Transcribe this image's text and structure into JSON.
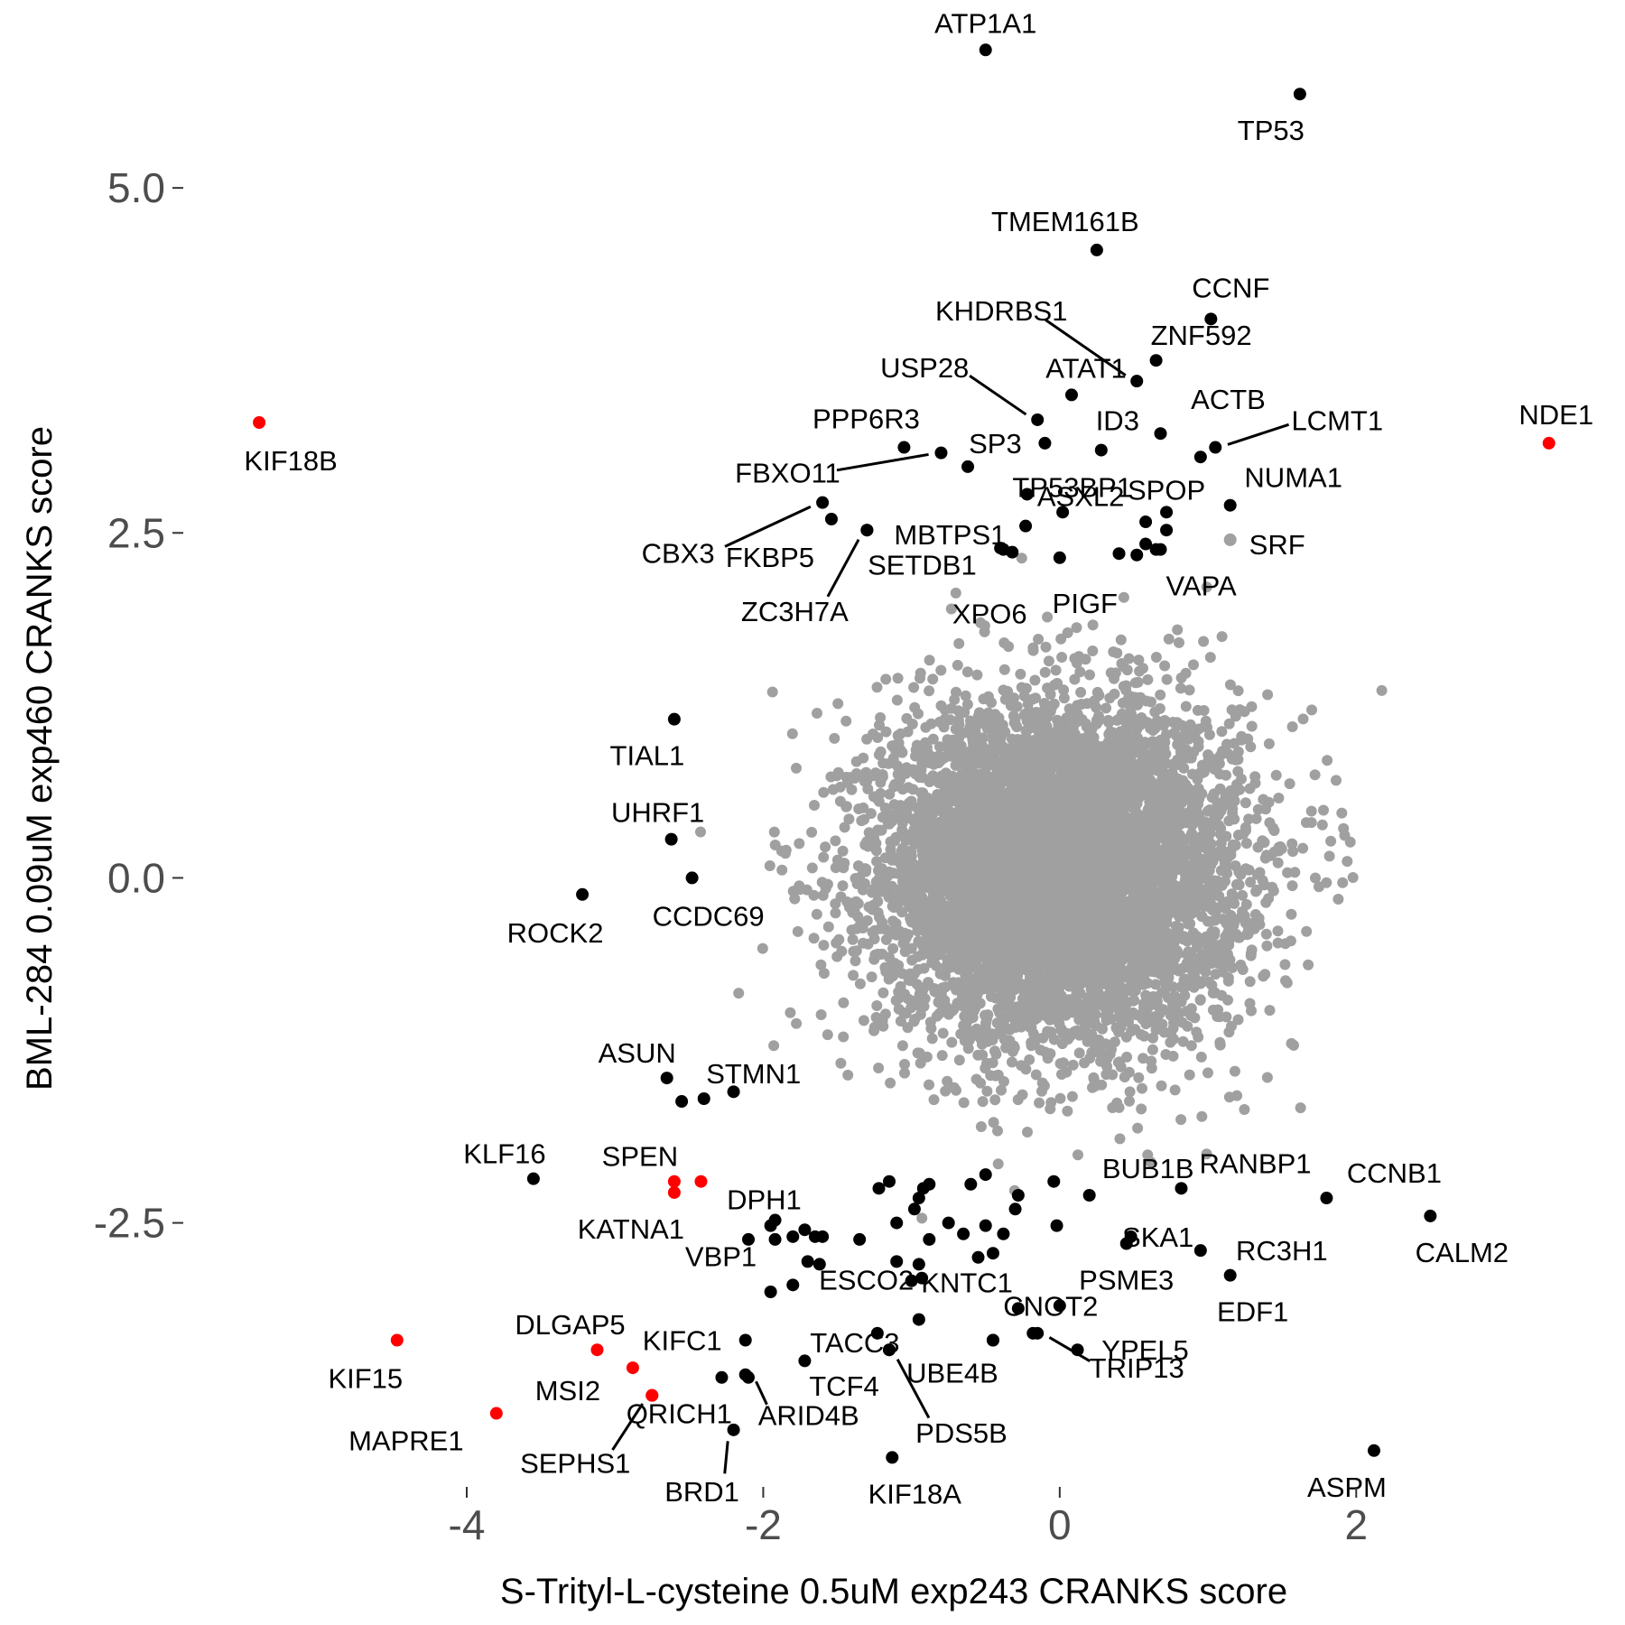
{
  "chart_data": {
    "type": "scatter",
    "xlabel": "S-Trityl-L-cysteine 0.5uM exp243 CRANKS score",
    "ylabel": "BML-284 0.09uM exp460 CRANKS score",
    "xlim": [
      -5.9,
      3.6
    ],
    "ylim": [
      -4.4,
      6.1
    ],
    "x_ticks": [
      -4,
      -2,
      0,
      2
    ],
    "x_tick_labels": [
      "-4",
      "-2",
      "0",
      "2"
    ],
    "y_ticks": [
      -2.5,
      0.0,
      2.5,
      5.0
    ],
    "y_tick_labels": [
      "-2.5",
      "0.0",
      "2.5",
      "5.0"
    ],
    "grid": false,
    "colors": {
      "background": "#a0a0a0",
      "highlight": "#000000",
      "red": "#ff0000"
    },
    "background_cloud": {
      "center": [
        0,
        0.05
      ],
      "sd": [
        0.6,
        0.6
      ],
      "n": 7000,
      "color": "#a0a0a0"
    },
    "labeled_points": [
      {
        "label": "ATP1A1",
        "x": -0.5,
        "y": 6.0
      },
      {
        "label": "TP53",
        "x": 1.62,
        "y": 5.68
      },
      {
        "label": "TMEM161B",
        "x": 0.25,
        "y": 4.55
      },
      {
        "label": "CCNF",
        "x": 1.02,
        "y": 4.05
      },
      {
        "label": "KHDRBS1",
        "x": 0.52,
        "y": 3.6
      },
      {
        "label": "ZNF592",
        "x": 0.65,
        "y": 3.75
      },
      {
        "label": "USP28",
        "x": -0.15,
        "y": 3.32
      },
      {
        "label": "ATAT1",
        "x": 0.08,
        "y": 3.5
      },
      {
        "label": "ACTB",
        "x": 0.68,
        "y": 3.22
      },
      {
        "label": "LCMT1",
        "x": 1.05,
        "y": 3.12
      },
      {
        "label": "NDE1",
        "x": 3.3,
        "y": 3.15,
        "highlight": "red"
      },
      {
        "label": "KIF18B",
        "x": -5.4,
        "y": 3.3,
        "highlight": "red"
      },
      {
        "label": "PPP6R3",
        "x": -1.05,
        "y": 3.12
      },
      {
        "label": "SP3",
        "x": -0.1,
        "y": 3.15
      },
      {
        "label": "ID3",
        "x": 0.28,
        "y": 3.1
      },
      {
        "label": "FBXO11",
        "x": -0.8,
        "y": 3.08
      },
      {
        "label": "TP53BP1",
        "x": -0.22,
        "y": 2.78
      },
      {
        "label": "SPOP",
        "x": 0.72,
        "y": 2.65
      },
      {
        "label": "NUMA1",
        "x": 1.15,
        "y": 2.7
      },
      {
        "label": "CBX3",
        "x": -1.6,
        "y": 2.72
      },
      {
        "label": "FKBP5",
        "x": -1.54,
        "y": 2.6
      },
      {
        "label": "MBTPS1",
        "x": -1.3,
        "y": 2.52
      },
      {
        "label": "ASXL2",
        "x": 0.02,
        "y": 2.65
      },
      {
        "label": "SRF",
        "x": 1.15,
        "y": 2.45,
        "highlight": "grey"
      },
      {
        "label": "SETDB1",
        "x": -0.38,
        "y": 2.38
      },
      {
        "label": "ZC3H7A",
        "x": -1.3,
        "y": 2.52
      },
      {
        "label": "PIGF",
        "x": 0.0,
        "y": 2.32
      },
      {
        "label": "VAPA",
        "x": 0.65,
        "y": 2.38
      },
      {
        "label": "XPO6",
        "x": -0.32,
        "y": 2.36
      },
      {
        "label": "TIAL1",
        "x": -2.6,
        "y": 1.15
      },
      {
        "label": "UHRF1",
        "x": -2.62,
        "y": 0.28
      },
      {
        "label": "CCDC69",
        "x": -2.48,
        "y": 0.0
      },
      {
        "label": "ROCK2",
        "x": -3.22,
        "y": -0.12
      },
      {
        "label": "ASUN",
        "x": -2.65,
        "y": -1.45
      },
      {
        "label": "STMN1",
        "x": -2.4,
        "y": -1.6
      },
      {
        "label": "KLF16",
        "x": -3.55,
        "y": -2.18
      },
      {
        "label": "SPEN",
        "x": -2.6,
        "y": -2.2,
        "highlight": "red"
      },
      {
        "label": "DPH1",
        "x": -2.42,
        "y": -2.2,
        "highlight": "red"
      },
      {
        "label": "KATNA1",
        "x": -2.6,
        "y": -2.28,
        "highlight": "red"
      },
      {
        "label": "BUB1B",
        "x": 0.2,
        "y": -2.3
      },
      {
        "label": "RANBP1",
        "x": 0.82,
        "y": -2.25
      },
      {
        "label": "CCNB1",
        "x": 1.8,
        "y": -2.32
      },
      {
        "label": "CALM2",
        "x": 2.5,
        "y": -2.45
      },
      {
        "label": "SKA1",
        "x": 0.48,
        "y": -2.6
      },
      {
        "label": "RC3H1",
        "x": 0.95,
        "y": -2.7
      },
      {
        "label": "PSME3",
        "x": 0.45,
        "y": -2.65
      },
      {
        "label": "EDF1",
        "x": 1.15,
        "y": -2.88
      },
      {
        "label": "VBP1",
        "x": -1.92,
        "y": -2.48
      },
      {
        "label": "ESCO2",
        "x": -1.7,
        "y": -2.78
      },
      {
        "label": "KNTC1",
        "x": -0.93,
        "y": -2.9
      },
      {
        "label": "CNOT2",
        "x": 0.0,
        "y": -3.1
      },
      {
        "label": "YPEL5",
        "x": 0.12,
        "y": -3.42
      },
      {
        "label": "DLGAP5",
        "x": -3.12,
        "y": -3.42,
        "highlight": "red"
      },
      {
        "label": "KIFC1",
        "x": -2.12,
        "y": -3.35
      },
      {
        "label": "TACC3",
        "x": -1.23,
        "y": -3.3
      },
      {
        "label": "UBE4B",
        "x": -0.45,
        "y": -3.35
      },
      {
        "label": "TRIP13",
        "x": -0.15,
        "y": -3.3
      },
      {
        "label": "KIF15",
        "x": -4.47,
        "y": -3.35,
        "highlight": "red"
      },
      {
        "label": "MSI2",
        "x": -2.88,
        "y": -3.55,
        "highlight": "red"
      },
      {
        "label": "TCF4",
        "x": -1.15,
        "y": -3.42
      },
      {
        "label": "MAPRE1",
        "x": -3.8,
        "y": -3.88,
        "highlight": "red"
      },
      {
        "label": "QRICH1",
        "x": -2.75,
        "y": -3.75,
        "highlight": "red"
      },
      {
        "label": "ARID4B",
        "x": -2.12,
        "y": -3.6
      },
      {
        "label": "SEPHS1",
        "x": -2.75,
        "y": -3.75,
        "highlight": "red"
      },
      {
        "label": "PDS5B",
        "x": -1.15,
        "y": -3.42
      },
      {
        "label": "BRD1",
        "x": -2.2,
        "y": -4.0
      },
      {
        "label": "KIF18A",
        "x": -1.13,
        "y": -4.2
      },
      {
        "label": "ASPM",
        "x": 2.12,
        "y": -4.15
      }
    ],
    "extra_points": [
      {
        "x": -0.62,
        "y": 2.98
      },
      {
        "x": -0.23,
        "y": 2.55
      },
      {
        "x": 0.58,
        "y": 2.58
      },
      {
        "x": 0.72,
        "y": 2.52
      },
      {
        "x": 0.68,
        "y": 2.38
      },
      {
        "x": 0.58,
        "y": 2.42
      },
      {
        "x": 0.52,
        "y": 2.34
      },
      {
        "x": 0.4,
        "y": 2.35
      },
      {
        "x": 0.95,
        "y": 3.05
      },
      {
        "x": -0.4,
        "y": 2.39
      },
      {
        "x": -2.2,
        "y": -1.55
      },
      {
        "x": -2.55,
        "y": -1.62
      },
      {
        "x": -1.22,
        "y": -2.25
      },
      {
        "x": -0.88,
        "y": -2.22
      },
      {
        "x": -0.6,
        "y": -2.22
      },
      {
        "x": -0.5,
        "y": -2.15
      },
      {
        "x": -0.28,
        "y": -2.3
      },
      {
        "x": -0.04,
        "y": -2.2
      },
      {
        "x": -0.95,
        "y": -2.32
      },
      {
        "x": -0.98,
        "y": -2.4
      },
      {
        "x": -1.95,
        "y": -2.52
      },
      {
        "x": -1.92,
        "y": -2.62
      },
      {
        "x": -1.8,
        "y": -2.6
      },
      {
        "x": -1.72,
        "y": -2.55
      },
      {
        "x": -1.65,
        "y": -2.6
      },
      {
        "x": -1.6,
        "y": -2.6
      },
      {
        "x": -2.1,
        "y": -2.62
      },
      {
        "x": -1.95,
        "y": -3.0
      },
      {
        "x": -1.8,
        "y": -2.95
      },
      {
        "x": -1.35,
        "y": -2.62
      },
      {
        "x": -1.1,
        "y": -2.5
      },
      {
        "x": -0.75,
        "y": -2.5
      },
      {
        "x": -0.65,
        "y": -2.58
      },
      {
        "x": -0.5,
        "y": -2.52
      },
      {
        "x": -0.38,
        "y": -2.58
      },
      {
        "x": -0.45,
        "y": -2.72
      },
      {
        "x": -0.55,
        "y": -2.75
      },
      {
        "x": -0.88,
        "y": -2.62
      },
      {
        "x": -0.95,
        "y": -2.8
      },
      {
        "x": -1.1,
        "y": -2.78
      },
      {
        "x": -1.0,
        "y": -2.92
      },
      {
        "x": -0.3,
        "y": -2.4
      },
      {
        "x": -0.02,
        "y": -2.52
      },
      {
        "x": -1.72,
        "y": -3.5
      },
      {
        "x": -2.28,
        "y": -3.62
      },
      {
        "x": -2.1,
        "y": -3.62
      },
      {
        "x": -1.62,
        "y": -2.8
      },
      {
        "x": -0.95,
        "y": -3.2
      },
      {
        "x": -0.45,
        "y": -3.35
      },
      {
        "x": -0.28,
        "y": -3.12
      },
      {
        "x": -0.18,
        "y": -3.3
      },
      {
        "x": -1.15,
        "y": -2.2
      },
      {
        "x": -0.92,
        "y": -2.25
      }
    ]
  }
}
